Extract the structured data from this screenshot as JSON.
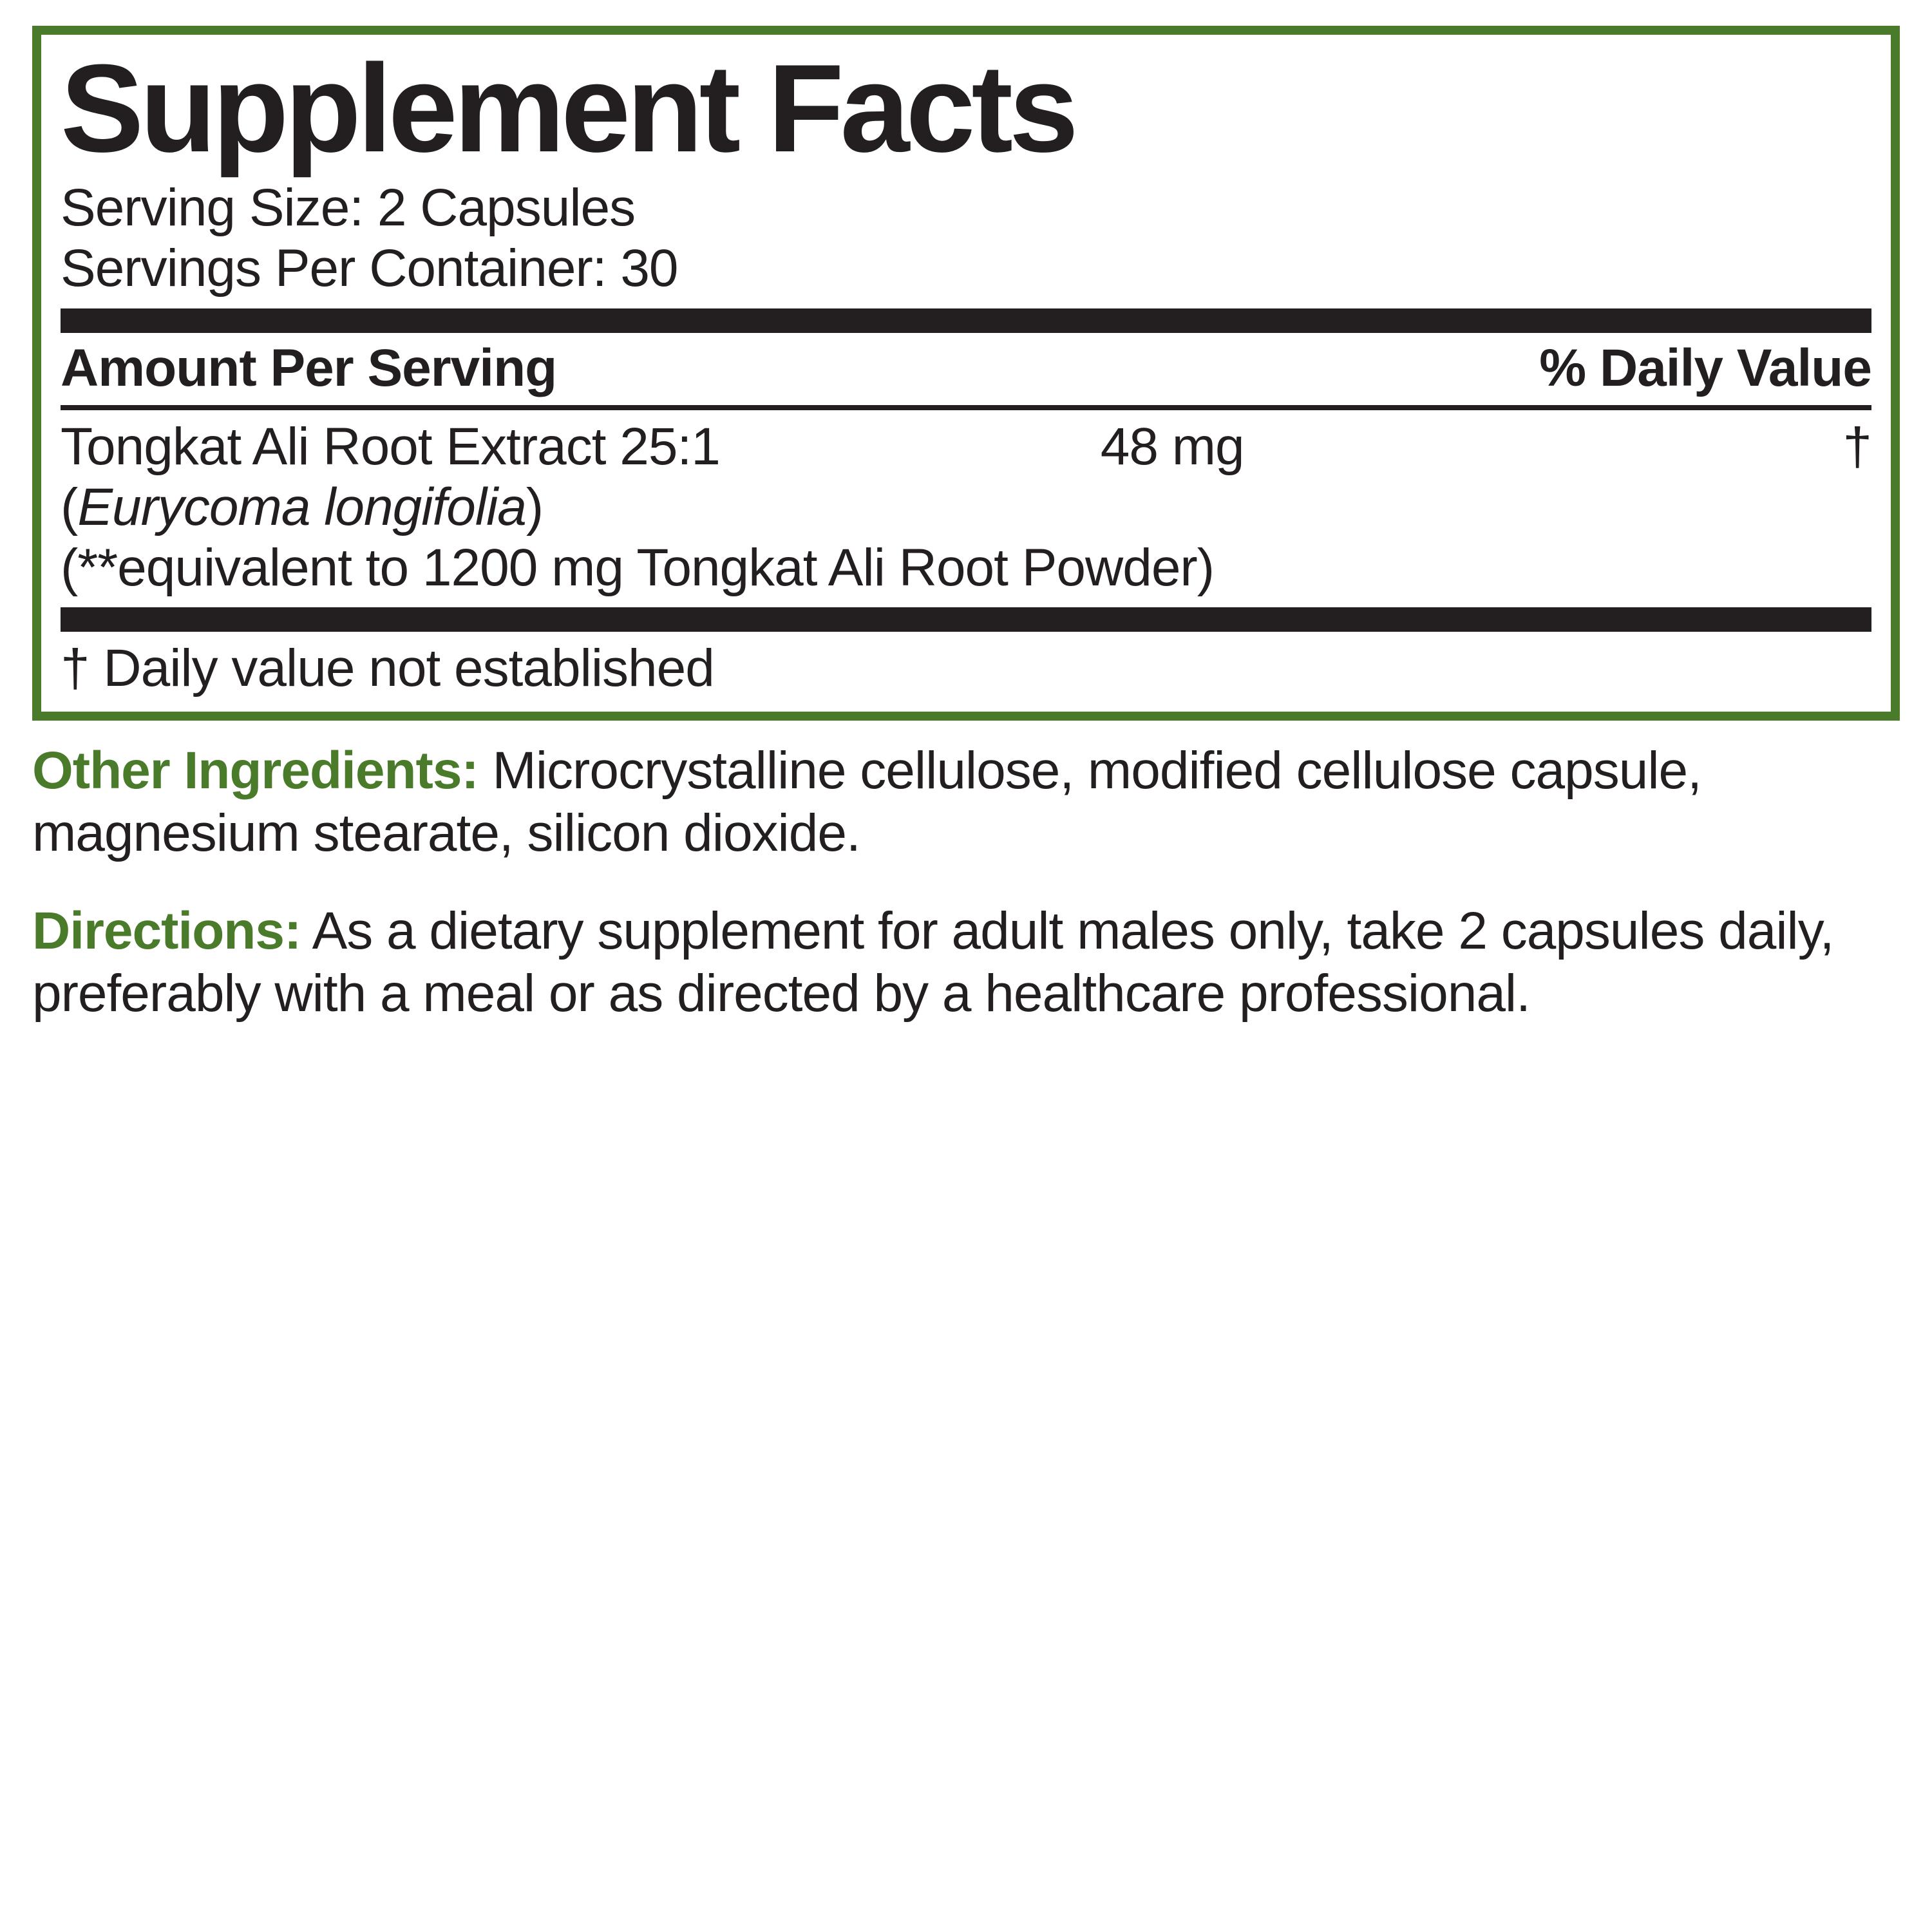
{
  "colors": {
    "border": "#4a7b2a",
    "text": "#231f20",
    "accent": "#4a7b2a",
    "background": "#ffffff"
  },
  "panel": {
    "title": "Supplement Facts",
    "serving_size_label": "Serving Size:",
    "serving_size_value": "2 Capsules",
    "servings_per_label": "Servings Per Container:",
    "servings_per_value": "30",
    "header_left": "Amount Per Serving",
    "header_right": "% Daily Value",
    "ingredient": {
      "line1_name": "Tongkat Ali Root Extract 25:1",
      "amount": "48 mg",
      "dv": "†",
      "line2_open": "(",
      "line2_italic": "Eurycoma longifolia",
      "line2_close": ")",
      "line3": "(**equivalent to 1200 mg Tongkat Ali Root Powder)"
    },
    "footnote": "† Daily value not established"
  },
  "other": {
    "label": "Other Ingredients:",
    "text": " Microcrystalline cellulose, modified cellulose capsule, magnesium stearate, silicon dioxide."
  },
  "directions": {
    "label": "Directions:",
    "text": " As a dietary supplement for adult males only, take 2 capsules daily, preferably with a meal or as directed by a healthcare professional."
  }
}
